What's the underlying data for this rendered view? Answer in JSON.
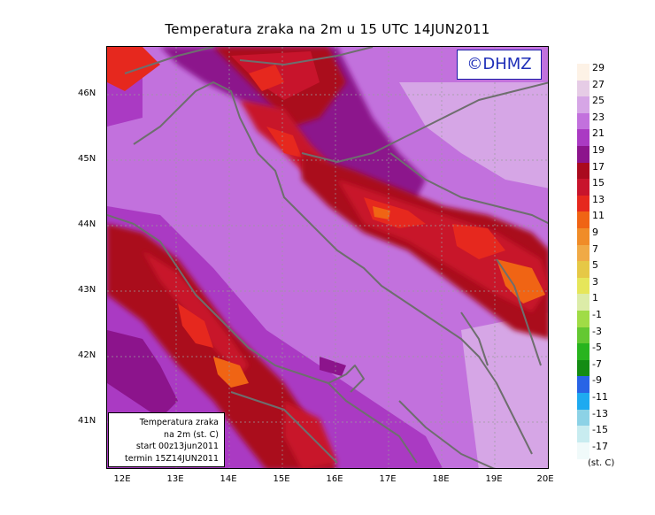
{
  "title": "Temperatura zraka na 2m u 15 UTC 14JUN2011",
  "logo": "©DHMZ",
  "info_box": {
    "line1": "Temperatura zraka",
    "line2": "na 2m (st. C)",
    "line3": "start 00z13jun2011",
    "line4": "termin 15Z14JUN2011"
  },
  "lat_labels": [
    "46N",
    "45N",
    "44N",
    "43N",
    "42N",
    "41N"
  ],
  "lon_labels": [
    "12E",
    "13E",
    "14E",
    "15E",
    "16E",
    "17E",
    "18E",
    "19E",
    "20E"
  ],
  "legend": {
    "unit": "(st. C)",
    "labels": [
      "29",
      "27",
      "25",
      "23",
      "21",
      "19",
      "17",
      "15",
      "13",
      "11",
      "9",
      "7",
      "5",
      "3",
      "1",
      "-1",
      "-3",
      "-5",
      "-7",
      "-9",
      "-11",
      "-13",
      "-15",
      "-17"
    ],
    "colors": [
      "#fdf2e6",
      "#e6cce6",
      "#d6a6e6",
      "#c271dd",
      "#aa3ac3",
      "#8c148c",
      "#aa0a1e",
      "#c8142c",
      "#e6281e",
      "#f06414",
      "#f08c28",
      "#f0aa46",
      "#e6c846",
      "#e6e65a",
      "#dceca8",
      "#a0dc46",
      "#64c832",
      "#28b41e",
      "#148c14",
      "#2864e6",
      "#1eaaf0",
      "#8cd2e6",
      "#c8ecf0",
      "#f0fafa"
    ]
  },
  "colors": {
    "sea": "#c271dd",
    "warm": "#e6281e",
    "hot": "#aa0a1e",
    "coast": "#6e6e6e"
  }
}
